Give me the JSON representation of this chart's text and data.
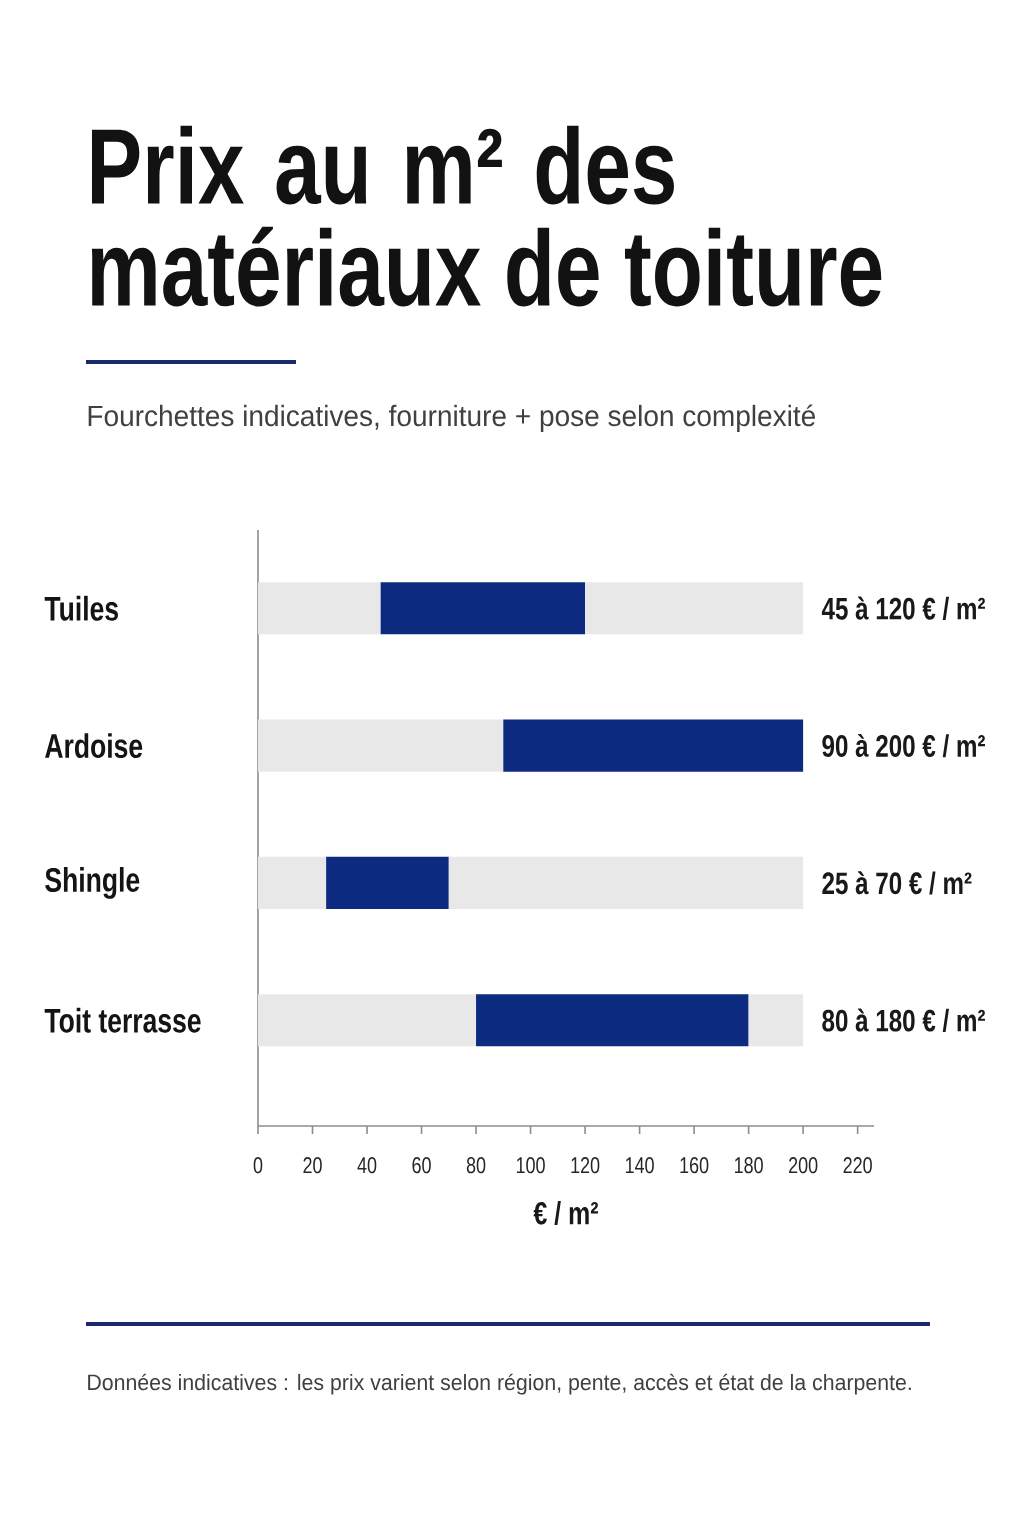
{
  "chart_data": {
    "type": "bar",
    "orientation": "horizontal",
    "stacked": true,
    "title": "Prix au m² des matériaux de toiture",
    "subtitle": "Fourchettes indicatives, fourniture + pose selon complexité",
    "xlabel": "€ / m²",
    "categories": [
      "Tuiles",
      "Ardoise",
      "Shingle",
      "Toit terrasse"
    ],
    "series": [
      {
        "color": "#e8e8e8",
        "values": [
          45,
          90,
          25,
          80
        ]
      },
      {
        "color": "#0b2a80",
        "values": [
          75,
          110,
          45,
          100
        ]
      },
      {
        "color": "#e8e8e8",
        "values": [
          80,
          0,
          130,
          20
        ]
      }
    ],
    "xlim": [
      0,
      226
    ],
    "xticks": [
      0,
      20,
      40,
      60,
      80,
      100,
      120,
      140,
      160,
      180,
      200,
      220
    ],
    "annotations": [
      "45 à 120 € / m²",
      "90 à 200 € / m²",
      "25 à 70 € / m²",
      "80 à 180 € / m²",
      "Données indicatives : les prix varient selon région, pente, accès et état de la charpente."
    ]
  }
}
